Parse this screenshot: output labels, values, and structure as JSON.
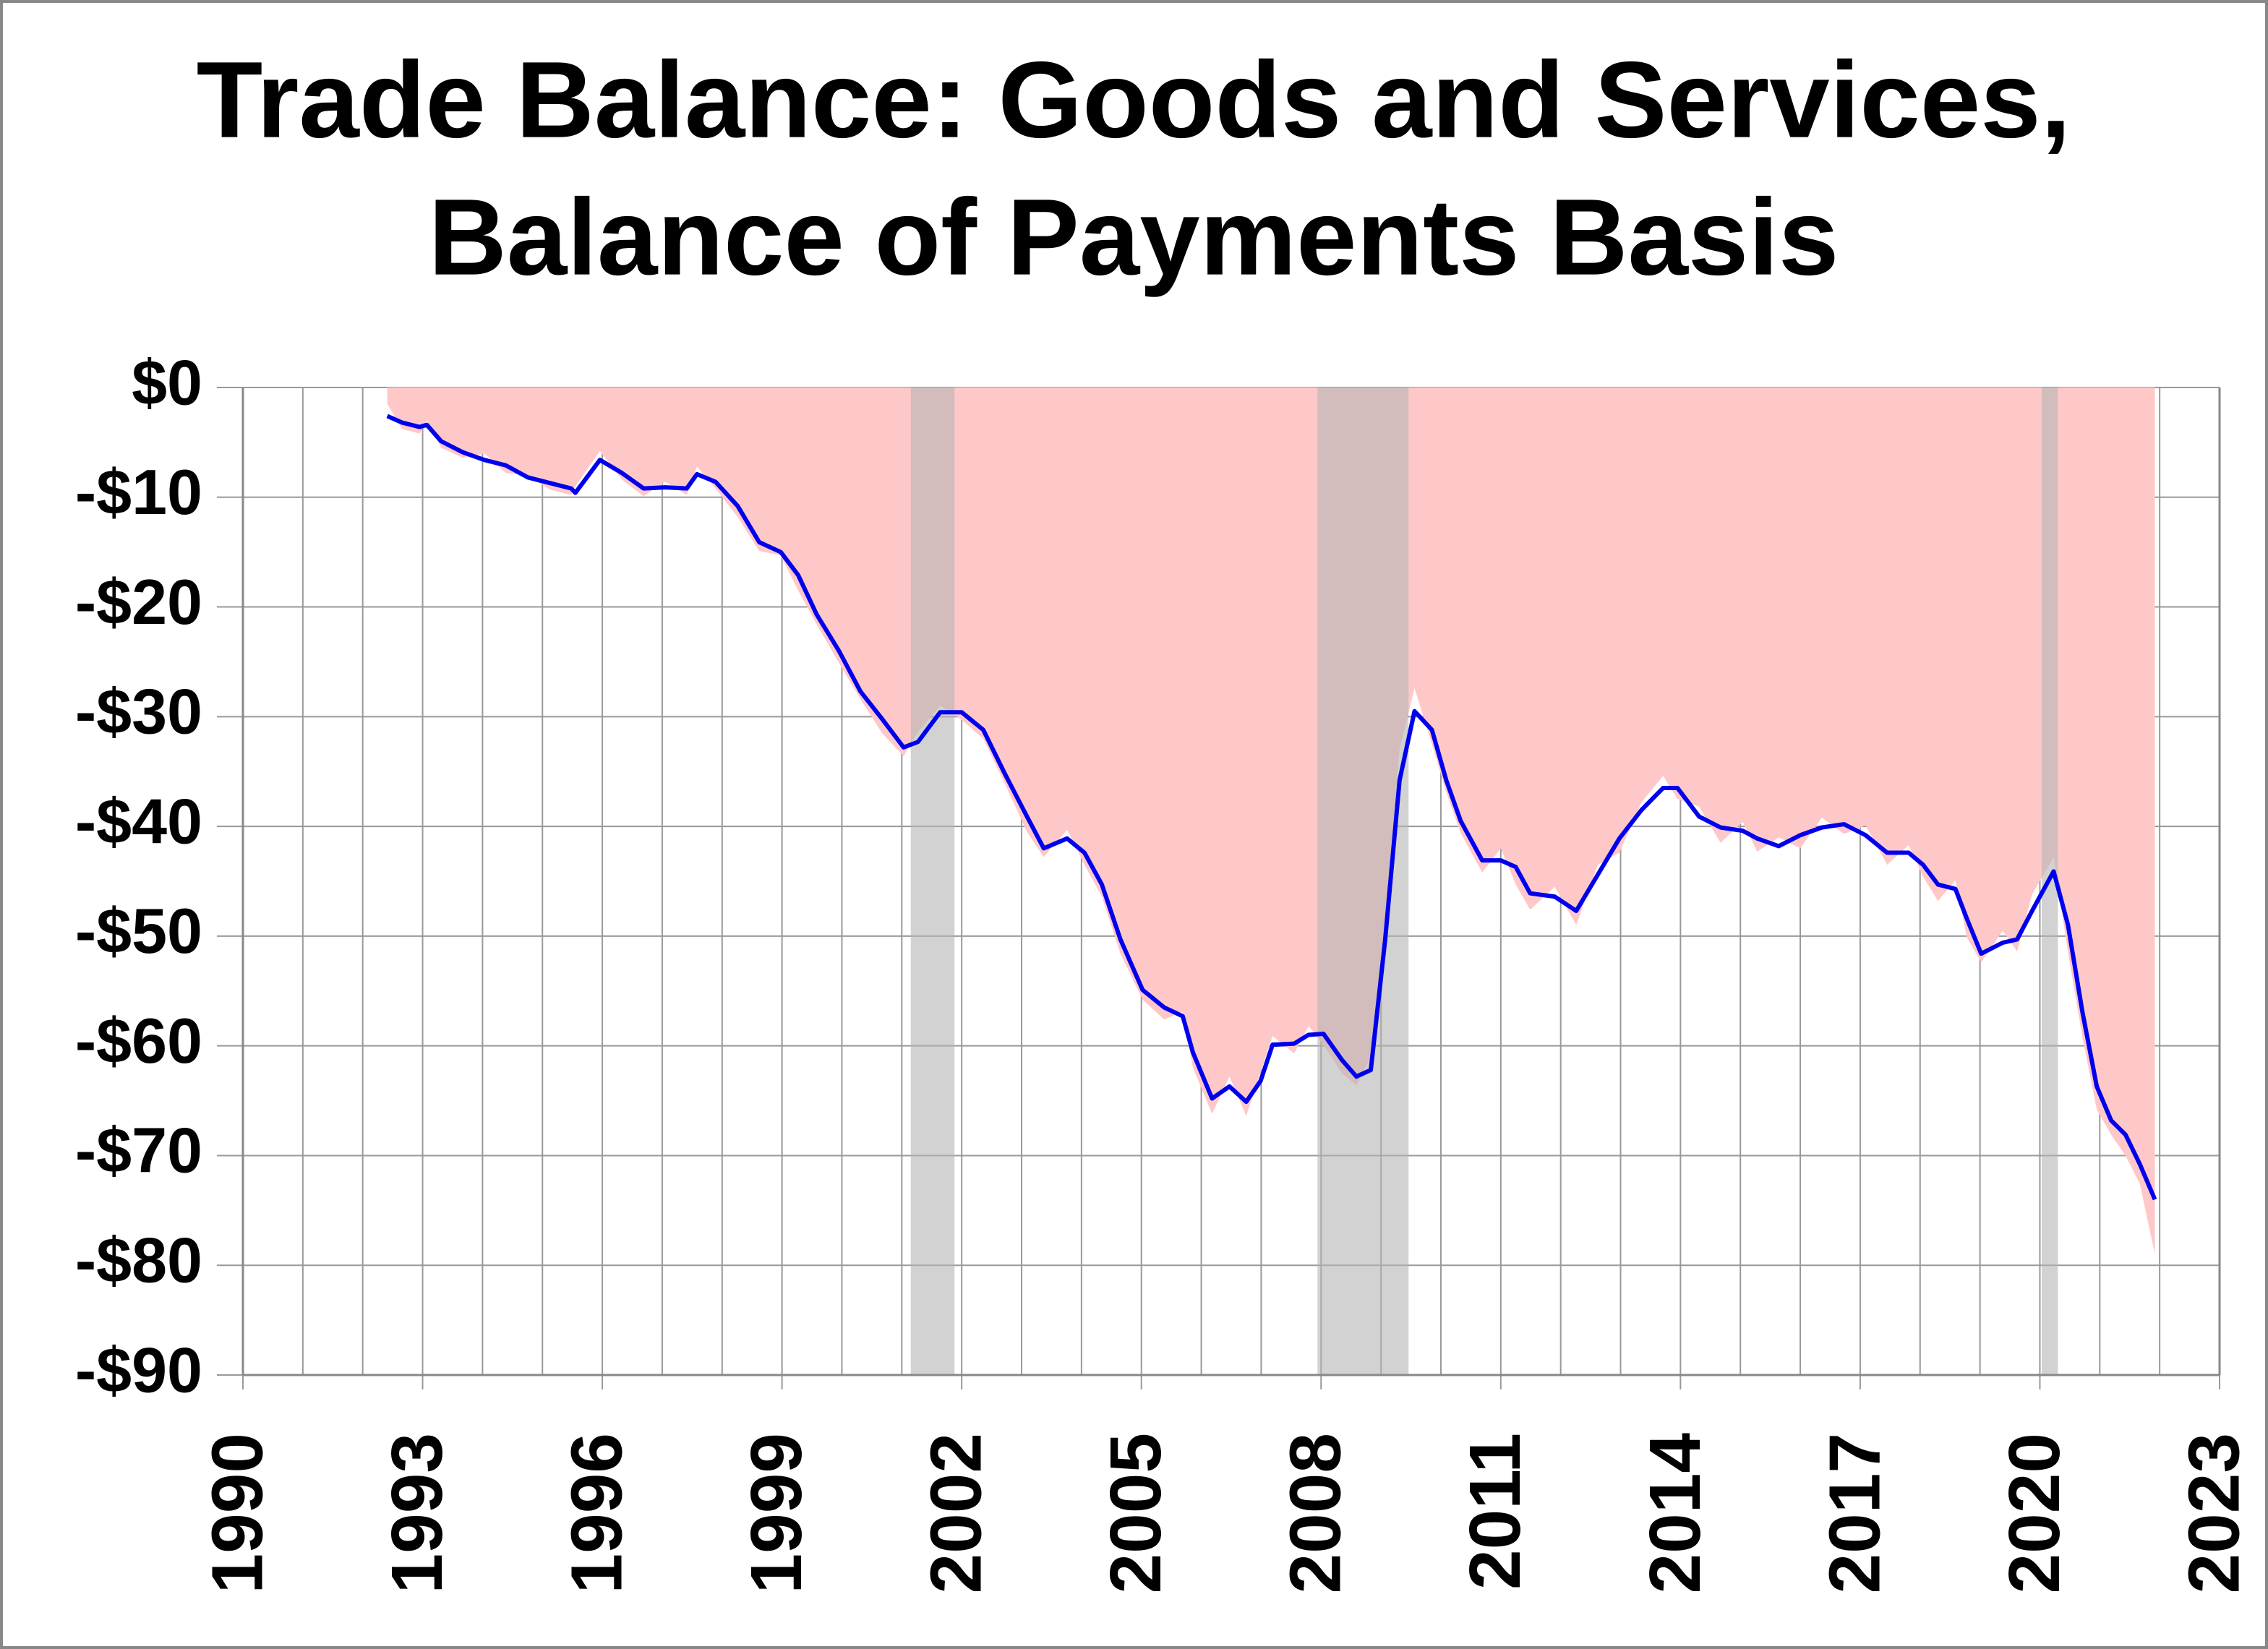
{
  "chart_data": {
    "type": "line",
    "title": [
      "Trade Balance: Goods and Services,",
      "Balance of Payments Basis"
    ],
    "x": [
      1992.41,
      1992.66,
      1992.95,
      1993.07,
      1993.31,
      1993.67,
      1994.03,
      1994.39,
      1994.76,
      1995.12,
      1995.48,
      1995.55,
      1995.96,
      1996.33,
      1996.69,
      1997.05,
      1997.41,
      1997.58,
      1997.89,
      1998.26,
      1998.62,
      1998.98,
      1999.27,
      1999.58,
      1999.95,
      2000.31,
      2000.67,
      2001.03,
      2001.27,
      2001.64,
      2002.0,
      2002.36,
      2002.72,
      2003.09,
      2003.37,
      2003.76,
      2004.05,
      2004.34,
      2004.65,
      2005.02,
      2005.38,
      2005.69,
      2005.86,
      2006.18,
      2006.47,
      2006.75,
      2006.99,
      2007.19,
      2007.55,
      2007.79,
      2008.04,
      2008.35,
      2008.59,
      2008.83,
      2009.07,
      2009.31,
      2009.56,
      2009.85,
      2010.09,
      2010.33,
      2010.69,
      2011.0,
      2011.25,
      2011.49,
      2011.9,
      2012.26,
      2012.62,
      2012.98,
      2013.35,
      2013.71,
      2013.95,
      2014.31,
      2014.67,
      2015.04,
      2015.28,
      2015.64,
      2016.0,
      2016.36,
      2016.73,
      2017.09,
      2017.45,
      2017.81,
      2018.05,
      2018.3,
      2018.59,
      2018.78,
      2019.02,
      2019.38,
      2019.62,
      2019.87,
      2020.23,
      2020.47,
      2020.71,
      2020.95,
      2021.19,
      2021.43,
      2021.67,
      2021.92
    ],
    "series": [
      {
        "kind": "area",
        "color": "#ffc8c8",
        "values": [
          -1.5,
          -3.8,
          -4.2,
          -3.0,
          -5.5,
          -6.4,
          -6.0,
          -7.8,
          -8.0,
          -9.3,
          -9.8,
          -9.0,
          -5.8,
          -8.4,
          -9.9,
          -8.6,
          -9.8,
          -7.2,
          -9.2,
          -11.8,
          -14.9,
          -15.3,
          -18.5,
          -21.6,
          -25.1,
          -28.4,
          -31.5,
          -33.6,
          -31.4,
          -29.0,
          -30.3,
          -32.0,
          -36.1,
          -40.5,
          -42.8,
          -40.3,
          -43.5,
          -46.4,
          -51.6,
          -55.8,
          -57.6,
          -56.9,
          -62.0,
          -66.2,
          -62.8,
          -66.4,
          -62.4,
          -59.1,
          -60.7,
          -58.2,
          -59.9,
          -62.5,
          -63.6,
          -61.0,
          -48.7,
          -33.0,
          -27.4,
          -32.5,
          -36.9,
          -40.6,
          -44.2,
          -42.0,
          -45.3,
          -47.6,
          -45.5,
          -49.0,
          -43.5,
          -42.4,
          -37.8,
          -35.4,
          -37.5,
          -38.2,
          -41.5,
          -39.6,
          -42.3,
          -41.0,
          -42.0,
          -39.2,
          -40.7,
          -39.9,
          -43.5,
          -41.7,
          -44.6,
          -46.8,
          -44.9,
          -50.1,
          -52.4,
          -49.5,
          -51.4,
          -46.2,
          -42.8,
          -51.5,
          -59.2,
          -65.8,
          -68.1,
          -70.0,
          -72.6,
          -79.0
        ]
      },
      {
        "kind": "line",
        "color": "#0000ee",
        "values": [
          -2.6,
          -3.2,
          -3.6,
          -3.4,
          -4.9,
          -5.9,
          -6.6,
          -7.1,
          -8.2,
          -8.7,
          -9.2,
          -9.6,
          -6.6,
          -7.8,
          -9.2,
          -9.1,
          -9.2,
          -7.9,
          -8.6,
          -10.8,
          -14.1,
          -15.0,
          -17.1,
          -20.7,
          -24.0,
          -27.7,
          -30.2,
          -32.8,
          -32.3,
          -29.6,
          -29.6,
          -31.2,
          -35.2,
          -39.1,
          -42.0,
          -41.1,
          -42.4,
          -45.3,
          -50.3,
          -54.9,
          -56.5,
          -57.3,
          -60.6,
          -64.8,
          -63.7,
          -65.1,
          -63.2,
          -59.9,
          -59.8,
          -59.0,
          -58.9,
          -61.3,
          -62.8,
          -62.2,
          -50.3,
          -35.8,
          -29.5,
          -31.2,
          -35.8,
          -39.5,
          -43.1,
          -43.1,
          -43.7,
          -46.1,
          -46.4,
          -47.7,
          -44.4,
          -41.1,
          -38.5,
          -36.5,
          -36.5,
          -39.1,
          -40.1,
          -40.4,
          -41.1,
          -41.8,
          -40.8,
          -40.1,
          -39.8,
          -40.8,
          -42.4,
          -42.4,
          -43.5,
          -45.3,
          -45.7,
          -48.4,
          -51.6,
          -50.6,
          -50.3,
          -47.7,
          -44.1,
          -49.0,
          -56.9,
          -63.7,
          -66.8,
          -68.1,
          -70.8,
          -74.0
        ]
      }
    ],
    "shaded_ranges": [
      [
        2001.15,
        2001.88
      ],
      [
        2007.94,
        2009.46
      ],
      [
        2020.03,
        2020.3
      ]
    ],
    "shade_color": "#b4b4b4",
    "xlim": [
      1990,
      2023
    ],
    "xticks": [
      1990,
      1993,
      1996,
      1999,
      2002,
      2005,
      2008,
      2011,
      2014,
      2017,
      2020,
      2023
    ],
    "x_minor_ticks": [
      1991,
      1992,
      1994,
      1995,
      1997,
      1998,
      2000,
      2001,
      2003,
      2004,
      2006,
      2007,
      2009,
      2010,
      2012,
      2013,
      2015,
      2016,
      2018,
      2019,
      2021,
      2022
    ],
    "ylim": [
      -90,
      0
    ],
    "yticks": [
      {
        "value": 0,
        "label": "$0"
      },
      {
        "value": -10,
        "label": "-$10"
      },
      {
        "value": -20,
        "label": "-$20"
      },
      {
        "value": -30,
        "label": "-$30"
      },
      {
        "value": -40,
        "label": "-$40"
      },
      {
        "value": -50,
        "label": "-$50"
      },
      {
        "value": -60,
        "label": "-$60"
      },
      {
        "value": -70,
        "label": "-$70"
      },
      {
        "value": -80,
        "label": "-$80"
      },
      {
        "value": -90,
        "label": "-$90"
      }
    ],
    "grid": true
  }
}
